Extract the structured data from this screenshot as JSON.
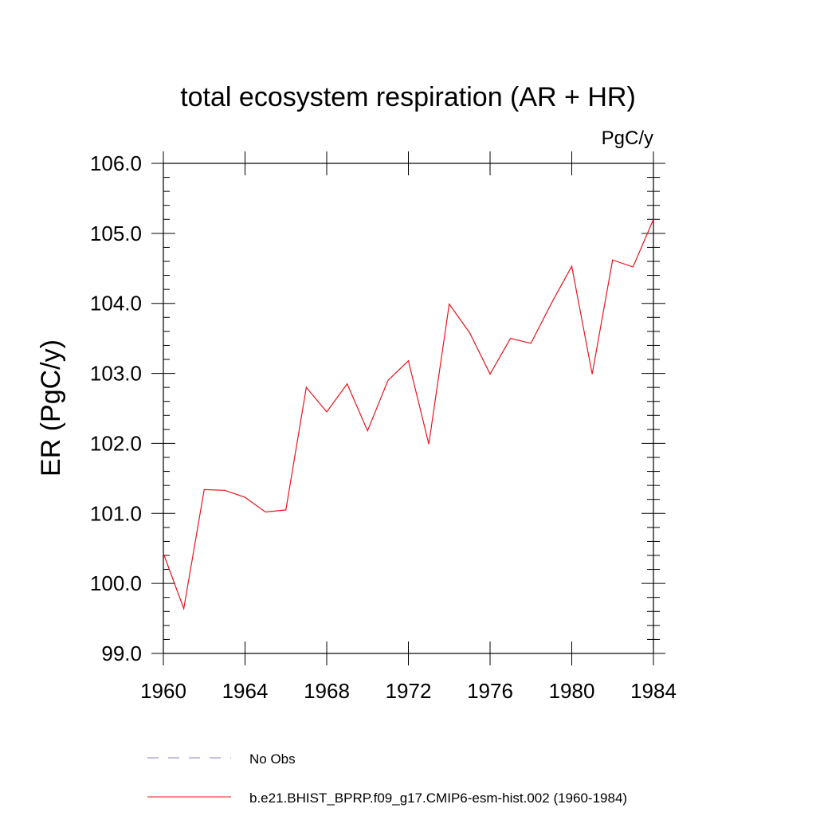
{
  "chart_data": {
    "type": "line",
    "title": "total ecosystem respiration (AR + HR)",
    "units_label": "PgC/y",
    "ylabel": "ER  (PgC/y)",
    "xlabel": "",
    "xlim": [
      1960,
      1984
    ],
    "ylim": [
      99.0,
      106.0
    ],
    "x_ticks": [
      "1960",
      "1964",
      "1968",
      "1972",
      "1976",
      "1980",
      "1984"
    ],
    "y_ticks": [
      "99.0",
      "100.0",
      "101.0",
      "102.0",
      "103.0",
      "104.0",
      "105.0",
      "106.0"
    ],
    "grid": false,
    "legend_position": "bottom",
    "series": [
      {
        "name": "b.e21.BHIST_BPRP.f09_g17.CMIP6-esm-hist.002 (1960-1984)",
        "color": "#e8141c",
        "style": "solid",
        "x": [
          1960,
          1961,
          1962,
          1963,
          1964,
          1965,
          1966,
          1967,
          1968,
          1969,
          1970,
          1971,
          1972,
          1973,
          1974,
          1975,
          1976,
          1977,
          1978,
          1979,
          1980,
          1981,
          1982,
          1983,
          1984
        ],
        "values": [
          100.43,
          99.64,
          101.34,
          101.33,
          101.23,
          101.02,
          101.05,
          102.8,
          102.45,
          102.85,
          102.18,
          102.9,
          103.18,
          101.99,
          103.99,
          103.58,
          102.99,
          103.5,
          103.43,
          104.0,
          104.53,
          102.99,
          104.62,
          104.52,
          105.2
        ]
      }
    ],
    "legend": [
      {
        "label": "No Obs",
        "color": "#8a84c4",
        "style": "dashed"
      },
      {
        "label": "b.e21.BHIST_BPRP.f09_g17.CMIP6-esm-hist.002 (1960-1984)",
        "color": "#e8141c",
        "style": "solid"
      }
    ]
  }
}
